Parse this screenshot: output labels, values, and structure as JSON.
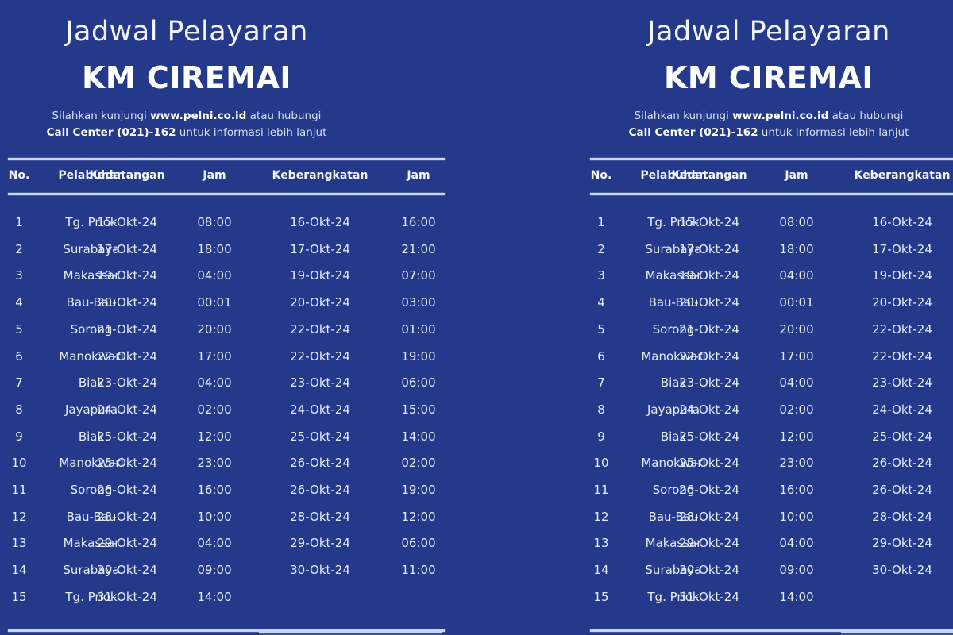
{
  "poster": {
    "title": "Jadwal Pelayaran",
    "ship_name": "KM CIREMAI",
    "info_line1_prefix": "Silahkan kunjungi ",
    "info_line1_url": "www.pelni.co.id",
    "info_line1_suffix": " atau hubungi",
    "info_line2_bold": "Call Center (021)-162",
    "info_line2_suffix": " untuk informasi lebih lanjut"
  },
  "table": {
    "headers": {
      "no": "No.",
      "port": "Pelabuhan",
      "arrival": "Kedatangan",
      "arrival_time": "Jam",
      "departure": "Keberangkatan",
      "departure_time": "Jam"
    },
    "rows": [
      {
        "no": "1",
        "port": "Tg. Priok",
        "arrival": "15-Okt-24",
        "arrival_time": "08:00",
        "departure": "16-Okt-24",
        "departure_time": "16:00"
      },
      {
        "no": "2",
        "port": "Surabaya",
        "arrival": "17-Okt-24",
        "arrival_time": "18:00",
        "departure": "17-Okt-24",
        "departure_time": "21:00"
      },
      {
        "no": "3",
        "port": "Makassar",
        "arrival": "19-Okt-24",
        "arrival_time": "04:00",
        "departure": "19-Okt-24",
        "departure_time": "07:00"
      },
      {
        "no": "4",
        "port": "Bau-Bau",
        "arrival": "20-Okt-24",
        "arrival_time": "00:01",
        "departure": "20-Okt-24",
        "departure_time": "03:00"
      },
      {
        "no": "5",
        "port": "Sorong",
        "arrival": "21-Okt-24",
        "arrival_time": "20:00",
        "departure": "22-Okt-24",
        "departure_time": "01:00"
      },
      {
        "no": "6",
        "port": "Manokwari",
        "arrival": "22-Okt-24",
        "arrival_time": "17:00",
        "departure": "22-Okt-24",
        "departure_time": "19:00"
      },
      {
        "no": "7",
        "port": "Biak",
        "arrival": "23-Okt-24",
        "arrival_time": "04:00",
        "departure": "23-Okt-24",
        "departure_time": "06:00"
      },
      {
        "no": "8",
        "port": "Jayapura",
        "arrival": "24-Okt-24",
        "arrival_time": "02:00",
        "departure": "24-Okt-24",
        "departure_time": "15:00"
      },
      {
        "no": "9",
        "port": "Biak",
        "arrival": "25-Okt-24",
        "arrival_time": "12:00",
        "departure": "25-Okt-24",
        "departure_time": "14:00"
      },
      {
        "no": "10",
        "port": "Manokwari",
        "arrival": "25-Okt-24",
        "arrival_time": "23:00",
        "departure": "26-Okt-24",
        "departure_time": "02:00"
      },
      {
        "no": "11",
        "port": "Sorong",
        "arrival": "26-Okt-24",
        "arrival_time": "16:00",
        "departure": "26-Okt-24",
        "departure_time": "19:00"
      },
      {
        "no": "12",
        "port": "Bau-Bau",
        "arrival": "28-Okt-24",
        "arrival_time": "10:00",
        "departure": "28-Okt-24",
        "departure_time": "12:00"
      },
      {
        "no": "13",
        "port": "Makassar",
        "arrival": "29-Okt-24",
        "arrival_time": "04:00",
        "departure": "29-Okt-24",
        "departure_time": "06:00"
      },
      {
        "no": "14",
        "port": "Surabaya",
        "arrival": "30-Okt-24",
        "arrival_time": "09:00",
        "departure": "30-Okt-24",
        "departure_time": "11:00"
      },
      {
        "no": "15",
        "port": "Tg. Priok",
        "arrival": "31-Okt-24",
        "arrival_time": "14:00",
        "departure": "",
        "departure_time": ""
      }
    ]
  },
  "colors": {
    "background": "#25398a",
    "text": "#eef2ff",
    "rule": "#c9d6f7"
  }
}
